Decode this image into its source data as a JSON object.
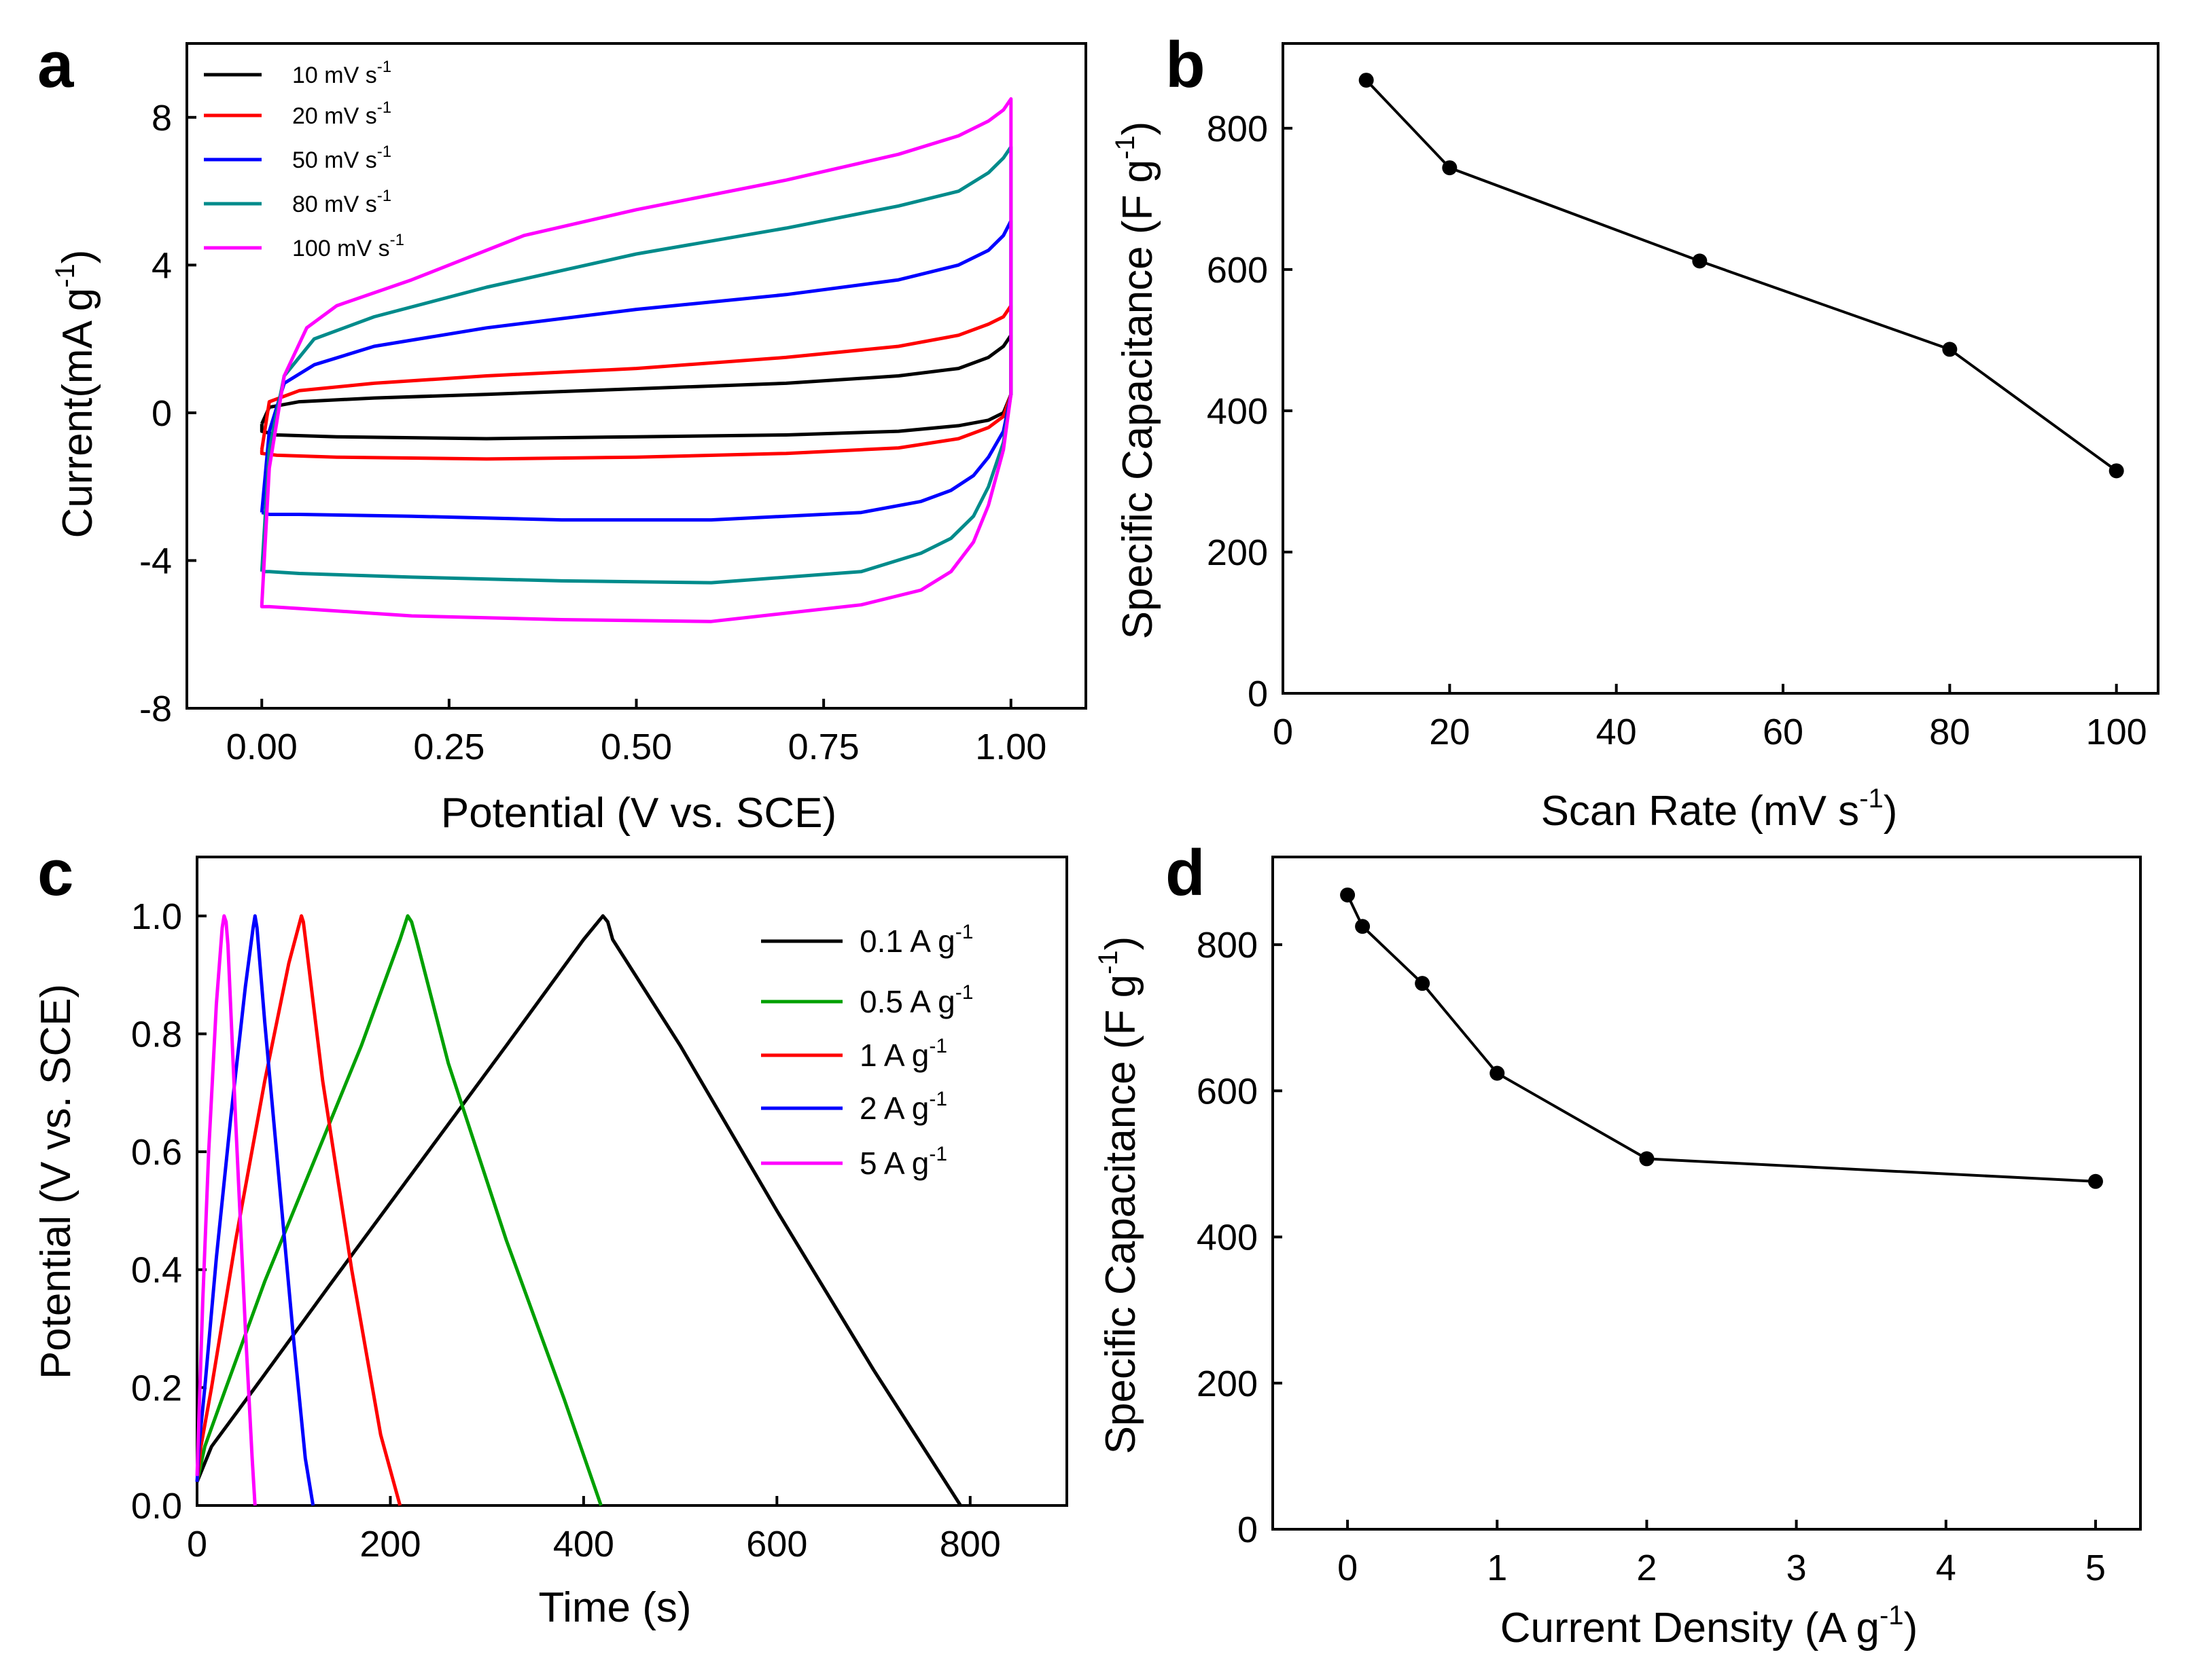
{
  "chart_data": [
    {
      "panel": "a",
      "type": "line",
      "xlabel": "Potential (V vs. SCE)",
      "ylabel": "Current(mA g",
      "ylabel_sup": "-1",
      "ylabel_end": ")",
      "xlim": [
        -0.1,
        1.1
      ],
      "ylim": [
        -8,
        10
      ],
      "xticks": [
        0.0,
        0.25,
        0.5,
        0.75,
        1.0
      ],
      "xtick_labels": [
        "0.00",
        "0.25",
        "0.50",
        "0.75",
        "1.00"
      ],
      "yticks": [
        -8,
        -4,
        0,
        4,
        8
      ],
      "ytick_labels": [
        "-8",
        "-4",
        "0",
        "4",
        "8"
      ],
      "series": [
        {
          "name": "10 mV s",
          "sup": "-1",
          "color": "#000000",
          "x": [
            0.0,
            0.01,
            0.05,
            0.15,
            0.3,
            0.5,
            0.7,
            0.85,
            0.93,
            0.97,
            0.99,
            1.0,
            1.0,
            0.99,
            0.97,
            0.93,
            0.85,
            0.7,
            0.5,
            0.3,
            0.1,
            0.02,
            0.0,
            0.0
          ],
          "y": [
            -0.3,
            0.15,
            0.3,
            0.4,
            0.5,
            0.65,
            0.8,
            1.0,
            1.2,
            1.5,
            1.8,
            2.1,
            0.5,
            0.0,
            -0.2,
            -0.35,
            -0.5,
            -0.6,
            -0.65,
            -0.7,
            -0.65,
            -0.6,
            -0.5,
            -0.3
          ]
        },
        {
          "name": "20 mV s",
          "sup": "-1",
          "color": "#ff0000",
          "x": [
            0.0,
            0.01,
            0.05,
            0.15,
            0.3,
            0.5,
            0.7,
            0.85,
            0.93,
            0.97,
            0.99,
            1.0,
            1.0,
            0.99,
            0.97,
            0.93,
            0.85,
            0.7,
            0.5,
            0.3,
            0.1,
            0.02,
            0.0,
            0.0
          ],
          "y": [
            -1.0,
            0.3,
            0.6,
            0.8,
            1.0,
            1.2,
            1.5,
            1.8,
            2.1,
            2.4,
            2.6,
            2.9,
            0.5,
            -0.1,
            -0.4,
            -0.7,
            -0.95,
            -1.1,
            -1.2,
            -1.25,
            -1.2,
            -1.15,
            -1.1,
            -1.0
          ]
        },
        {
          "name": "50 mV s",
          "sup": "-1",
          "color": "#0000ff",
          "x": [
            0.0,
            0.01,
            0.03,
            0.07,
            0.15,
            0.3,
            0.5,
            0.7,
            0.85,
            0.93,
            0.97,
            0.99,
            1.0,
            1.0,
            0.99,
            0.97,
            0.95,
            0.92,
            0.88,
            0.8,
            0.6,
            0.4,
            0.2,
            0.05,
            0.01,
            0.0,
            0.0
          ],
          "y": [
            -2.7,
            -0.5,
            0.8,
            1.3,
            1.8,
            2.3,
            2.8,
            3.2,
            3.6,
            4.0,
            4.4,
            4.8,
            5.2,
            0.5,
            -0.5,
            -1.2,
            -1.7,
            -2.1,
            -2.4,
            -2.7,
            -2.9,
            -2.9,
            -2.8,
            -2.75,
            -2.75,
            -2.7,
            -2.7
          ]
        },
        {
          "name": "80 mV s",
          "sup": "-1",
          "color": "#008b8b",
          "x": [
            0.0,
            0.01,
            0.03,
            0.07,
            0.15,
            0.3,
            0.5,
            0.7,
            0.85,
            0.93,
            0.97,
            0.99,
            1.0,
            1.0,
            0.99,
            0.97,
            0.95,
            0.92,
            0.88,
            0.8,
            0.6,
            0.4,
            0.2,
            0.05,
            0.01,
            0.0,
            0.0
          ],
          "y": [
            -4.3,
            -1.0,
            1.0,
            2.0,
            2.6,
            3.4,
            4.3,
            5.0,
            5.6,
            6.0,
            6.5,
            6.9,
            7.2,
            0.5,
            -0.8,
            -2.0,
            -2.8,
            -3.4,
            -3.8,
            -4.3,
            -4.6,
            -4.55,
            -4.45,
            -4.35,
            -4.3,
            -4.3,
            -4.3
          ]
        },
        {
          "name": "100 mV s",
          "sup": "-1",
          "color": "#ff00ff",
          "x": [
            0.0,
            0.01,
            0.03,
            0.06,
            0.1,
            0.2,
            0.35,
            0.5,
            0.7,
            0.85,
            0.93,
            0.97,
            0.99,
            1.0,
            1.0,
            0.99,
            0.97,
            0.95,
            0.92,
            0.88,
            0.8,
            0.6,
            0.4,
            0.2,
            0.05,
            0.01,
            0.0,
            0.0
          ],
          "y": [
            -5.2,
            -1.5,
            1.0,
            2.3,
            2.9,
            3.6,
            4.8,
            5.5,
            6.3,
            7.0,
            7.5,
            7.9,
            8.2,
            8.5,
            0.5,
            -1.0,
            -2.5,
            -3.5,
            -4.3,
            -4.8,
            -5.2,
            -5.65,
            -5.6,
            -5.5,
            -5.3,
            -5.25,
            -5.25,
            -5.2
          ]
        }
      ]
    },
    {
      "panel": "b",
      "type": "line",
      "xlabel": "Scan Rate (mV s",
      "xlabel_sup": "-1",
      "xlabel_end": ")",
      "ylabel": "Specific Capacitance (F g",
      "ylabel_sup": "-1",
      "ylabel_end": ")",
      "xlim": [
        0,
        105
      ],
      "ylim": [
        0,
        920
      ],
      "xticks": [
        0,
        20,
        40,
        60,
        80,
        100
      ],
      "xtick_labels": [
        "0",
        "20",
        "40",
        "60",
        "80",
        "100"
      ],
      "yticks": [
        0,
        200,
        400,
        600,
        800
      ],
      "ytick_labels": [
        "0",
        "200",
        "400",
        "600",
        "800"
      ],
      "series": [
        {
          "name": "capacitance",
          "x": [
            10,
            20,
            50,
            80,
            100
          ],
          "y": [
            868,
            744,
            612,
            487,
            315
          ]
        }
      ]
    },
    {
      "panel": "c",
      "type": "line",
      "xlabel": "Time (s)",
      "ylabel": "Potential (V vs. SCE)",
      "xlim": [
        0,
        900
      ],
      "ylim": [
        0,
        1.1
      ],
      "xticks": [
        0,
        200,
        400,
        600,
        800
      ],
      "xtick_labels": [
        "0",
        "200",
        "400",
        "600",
        "800"
      ],
      "yticks": [
        0.0,
        0.2,
        0.4,
        0.6,
        0.8,
        1.0
      ],
      "ytick_labels": [
        "0.0",
        "0.2",
        "0.4",
        "0.6",
        "0.8",
        "1.0"
      ],
      "series": [
        {
          "name": "0.1 A g",
          "sup": "-1",
          "color": "#000000",
          "x": [
            0,
            15,
            60,
            140,
            230,
            320,
            400,
            420,
            425,
            430,
            500,
            600,
            700,
            790
          ],
          "y": [
            0.04,
            0.1,
            0.2,
            0.38,
            0.58,
            0.78,
            0.96,
            1.0,
            0.99,
            0.96,
            0.78,
            0.5,
            0.23,
            0.0
          ]
        },
        {
          "name": "0.5 A g",
          "sup": "-1",
          "color": "#00a000",
          "x": [
            0,
            8,
            30,
            70,
            120,
            170,
            210,
            218,
            222,
            227,
            260,
            320,
            380,
            418
          ],
          "y": [
            0.04,
            0.1,
            0.2,
            0.38,
            0.58,
            0.78,
            0.96,
            1.0,
            0.99,
            0.96,
            0.75,
            0.45,
            0.18,
            0.0
          ]
        },
        {
          "name": "1 A g",
          "sup": "-1",
          "color": "#ff0000",
          "x": [
            0,
            4,
            15,
            40,
            70,
            95,
            108,
            110,
            113,
            130,
            160,
            190,
            210
          ],
          "y": [
            0.04,
            0.1,
            0.2,
            0.45,
            0.72,
            0.92,
            1.0,
            0.99,
            0.95,
            0.72,
            0.4,
            0.12,
            0.0
          ]
        },
        {
          "name": "2 A g",
          "sup": "-1",
          "color": "#0000ff",
          "x": [
            0,
            2,
            8,
            20,
            35,
            50,
            58,
            60,
            62,
            70,
            85,
            100,
            112,
            120
          ],
          "y": [
            0.04,
            0.1,
            0.2,
            0.42,
            0.66,
            0.88,
            0.98,
            1.0,
            0.98,
            0.82,
            0.55,
            0.28,
            0.08,
            0.0
          ]
        },
        {
          "name": "5 A g",
          "sup": "-1",
          "color": "#ff00ff",
          "x": [
            0,
            2,
            6,
            12,
            20,
            26,
            28,
            30,
            32,
            40,
            50,
            57,
            60
          ],
          "y": [
            0.05,
            0.15,
            0.35,
            0.6,
            0.85,
            0.98,
            1.0,
            0.99,
            0.95,
            0.65,
            0.3,
            0.08,
            0.0
          ]
        }
      ]
    },
    {
      "panel": "d",
      "type": "line",
      "xlabel": "Current Density (A g",
      "xlabel_sup": "-1",
      "xlabel_end": ")",
      "ylabel": "Specific Capacitance (F g",
      "ylabel_sup": "-1",
      "ylabel_end": ")",
      "xlim": [
        -0.5,
        5.3
      ],
      "ylim": [
        0,
        920
      ],
      "xticks": [
        0,
        1,
        2,
        3,
        4,
        5
      ],
      "xtick_labels": [
        "0",
        "1",
        "2",
        "3",
        "4",
        "5"
      ],
      "yticks": [
        0,
        200,
        400,
        600,
        800
      ],
      "ytick_labels": [
        "0",
        "200",
        "400",
        "600",
        "800"
      ],
      "series": [
        {
          "name": "capacitance",
          "x": [
            0.0,
            0.1,
            0.5,
            1.0,
            2.0,
            5.0
          ],
          "y": [
            868,
            825,
            747,
            624,
            507,
            476
          ]
        }
      ]
    }
  ]
}
